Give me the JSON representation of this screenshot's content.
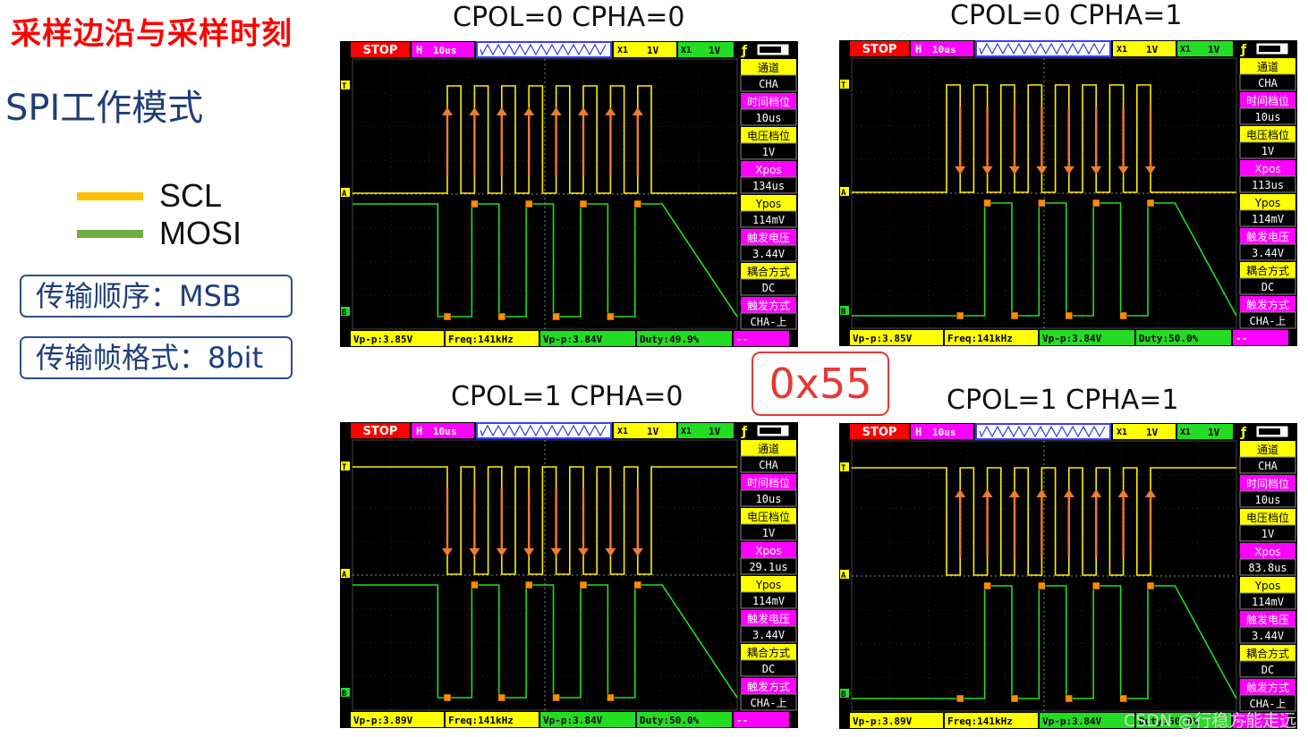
{
  "title": "采样边沿与采样时刻",
  "subtitle": "SPI工作模式",
  "legend": [
    {
      "label": "SCL",
      "color": "#ffc000"
    },
    {
      "label": "MOSI",
      "color": "#70ad47"
    }
  ],
  "info": [
    {
      "text": "传输顺序：MSB"
    },
    {
      "text": "传输帧格式：8bit"
    }
  ],
  "center_value": "0x55",
  "watermark": "CSDN @行稳方能走远",
  "scopes": [
    {
      "label": "CPOL=0 CPHA=0",
      "cpol": 0,
      "cpha": 0,
      "arrow_dir": "up",
      "status": "STOP",
      "h": "H",
      "timebase": "10us",
      "ch1": "1V",
      "ch2": "1V",
      "side": [
        {
          "title": "通道",
          "value": "CHA"
        },
        {
          "title": "时间档位",
          "value": "10us"
        },
        {
          "title": "电压档位",
          "value": "1V"
        },
        {
          "title": "Xpos",
          "value": "134us"
        },
        {
          "title": "Ypos",
          "value": "114mV"
        },
        {
          "title": "触发电压",
          "value": "3.44V"
        },
        {
          "title": "耦合方式",
          "value": "DC"
        },
        {
          "title": "触发方式",
          "value": "CHA-上"
        }
      ],
      "bottom": [
        "Vp-p:3.85V",
        "Freq:141kHz",
        "Vp-p:3.84V",
        "Duty:49.9%",
        "--"
      ]
    },
    {
      "label": "CPOL=0 CPHA=1",
      "cpol": 0,
      "cpha": 1,
      "arrow_dir": "down",
      "status": "STOP",
      "h": "H",
      "timebase": "10us",
      "ch1": "1V",
      "ch2": "1V",
      "side": [
        {
          "title": "通道",
          "value": "CHA"
        },
        {
          "title": "时间档位",
          "value": "10us"
        },
        {
          "title": "电压档位",
          "value": "1V"
        },
        {
          "title": "Xpos",
          "value": "113us"
        },
        {
          "title": "Ypos",
          "value": "114mV"
        },
        {
          "title": "触发电压",
          "value": "3.44V"
        },
        {
          "title": "耦合方式",
          "value": "DC"
        },
        {
          "title": "触发方式",
          "value": "CHA-上"
        }
      ],
      "bottom": [
        "Vp-p:3.85V",
        "Freq:141kHz",
        "Vp-p:3.84V",
        "Duty:50.0%",
        "--"
      ]
    },
    {
      "label": "CPOL=1 CPHA=0",
      "cpol": 1,
      "cpha": 0,
      "arrow_dir": "down",
      "status": "STOP",
      "h": "H",
      "timebase": "10us",
      "ch1": "1V",
      "ch2": "1V",
      "side": [
        {
          "title": "通道",
          "value": "CHA"
        },
        {
          "title": "时间档位",
          "value": "10us"
        },
        {
          "title": "电压档位",
          "value": "1V"
        },
        {
          "title": "Xpos",
          "value": "29.1us"
        },
        {
          "title": "Ypos",
          "value": "114mV"
        },
        {
          "title": "触发电压",
          "value": "3.44V"
        },
        {
          "title": "耦合方式",
          "value": "DC"
        },
        {
          "title": "触发方式",
          "value": "CHA-上"
        }
      ],
      "bottom": [
        "Vp-p:3.89V",
        "Freq:141kHz",
        "Vp-p:3.84V",
        "Duty:50.0%",
        "--"
      ]
    },
    {
      "label": "CPOL=1 CPHA=1",
      "cpol": 1,
      "cpha": 1,
      "arrow_dir": "up",
      "status": "STOP",
      "h": "H",
      "timebase": "10us",
      "ch1": "1V",
      "ch2": "1V",
      "side": [
        {
          "title": "通道",
          "value": "CHA"
        },
        {
          "title": "时间档位",
          "value": "10us"
        },
        {
          "title": "电压档位",
          "value": "1V"
        },
        {
          "title": "Xpos",
          "value": "83.8us"
        },
        {
          "title": "Ypos",
          "value": "114mV"
        },
        {
          "title": "触发电压",
          "value": "3.44V"
        },
        {
          "title": "耦合方式",
          "value": "DC"
        },
        {
          "title": "触发方式",
          "value": "CHA-上"
        }
      ],
      "bottom": [
        "Vp-p:3.89V",
        "Freq:141kHz",
        "Vp-p:3.84V",
        "Duty:50.0%",
        "--"
      ]
    }
  ]
}
